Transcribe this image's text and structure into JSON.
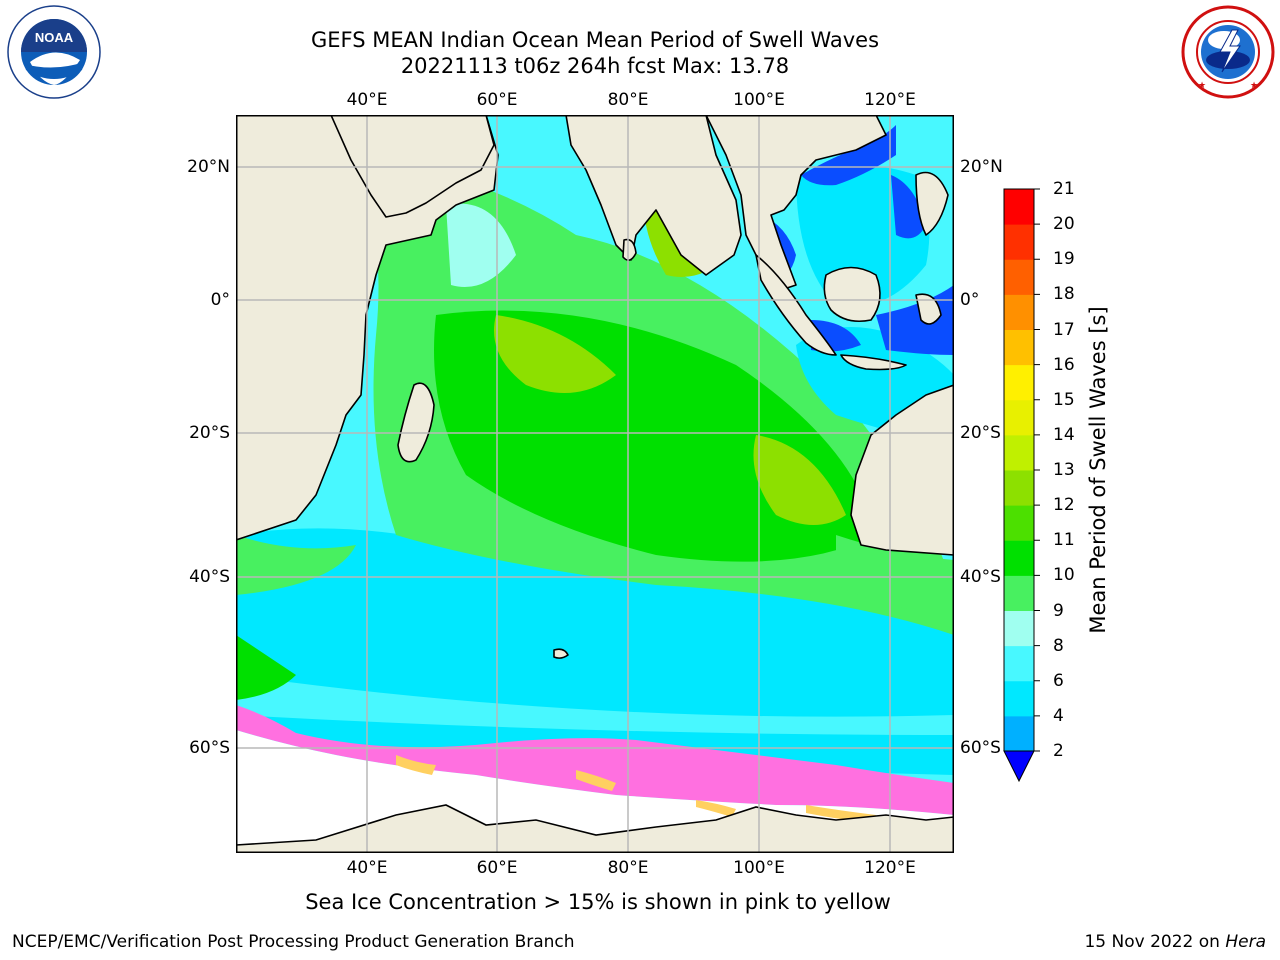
{
  "title": {
    "line1": "GEFS MEAN Indian Ocean Mean Period of Swell Waves",
    "line2": "20221113 t06z 264h fcst   Max: 13.78"
  },
  "lon_ticks": [
    "40°E",
    "60°E",
    "80°E",
    "100°E",
    "120°E"
  ],
  "lat_ticks": [
    "20°N",
    "0°",
    "20°S",
    "40°S",
    "60°S"
  ],
  "colorbar": {
    "label": "Mean Period of Swell Waves [s]",
    "ticks": [
      "2",
      "4",
      "6",
      "8",
      "9",
      "10",
      "11",
      "12",
      "13",
      "14",
      "15",
      "16",
      "17",
      "18",
      "19",
      "20",
      "21"
    ],
    "colors": [
      "#0a4dff",
      "#00b0ff",
      "#00e8ff",
      "#48f8ff",
      "#a0fff0",
      "#48f060",
      "#00e000",
      "#4ce000",
      "#8de000",
      "#c0f000",
      "#e8f000",
      "#fff000",
      "#ffc000",
      "#ff9000",
      "#ff6000",
      "#ff3000",
      "#ff0000"
    ],
    "extend_color": "#0000ff"
  },
  "note": "Sea Ice Concentration > 15% is shown in pink to yellow",
  "credit": "NCEP/EMC/Verification Post Processing Product Generation Branch",
  "date_prefix": "15 Nov 2022 on ",
  "date_machine": "Hera",
  "logos": {
    "noaa": "NOAA",
    "noaa_ring": "NATIONAL OCEANIC AND ATMOSPHERIC ADMINISTRATION · U.S. DEPARTMENT OF COMMERCE",
    "nws_ring": "NATIONAL WEATHER SERVICE"
  },
  "colors": {
    "land": "#efecdc",
    "grid": "#b8b8b8",
    "ice_pink": "#ff70e0",
    "ice_yellow": "#ffd060"
  }
}
